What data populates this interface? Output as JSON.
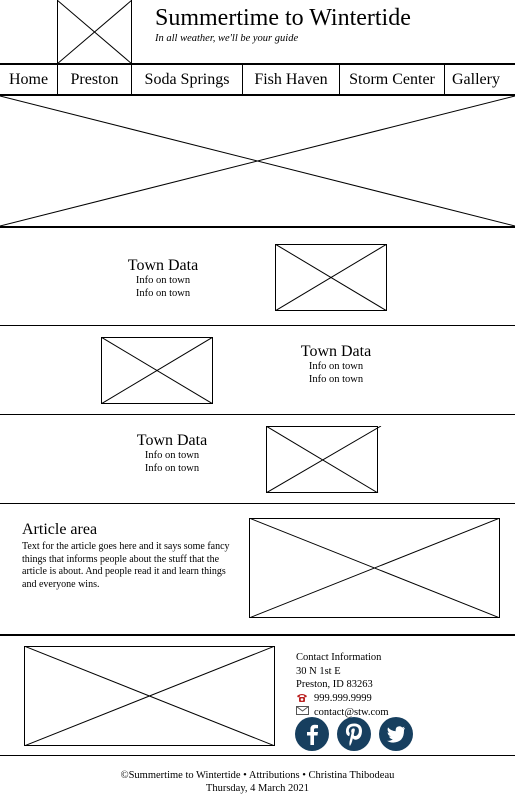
{
  "header": {
    "title": "Summertime to Wintertide",
    "motto": "In all weather, we'll be your guide"
  },
  "nav": {
    "items": [
      "Home",
      "Preston",
      "Soda Springs",
      "Fish Haven",
      "Storm Center",
      "Gallery"
    ]
  },
  "towns": [
    {
      "heading": "Town Data",
      "line1": "Info on town",
      "line2": "Info on town"
    },
    {
      "heading": "Town Data",
      "line1": "Info on town",
      "line2": "Info on town"
    },
    {
      "heading": "Town Data",
      "line1": "Info on town",
      "line2": "Info on town"
    }
  ],
  "article": {
    "heading": "Article area",
    "body": "Text for the article goes here and it says some fancy things that informs people about the stuff that the article is about. And people read it and learn things and everyone wins."
  },
  "contact": {
    "heading": "Contact Information",
    "street": "30 N 1st E",
    "city": "Preston, ID 83263",
    "phone": "999.999.9999",
    "email": "contact@stw.com",
    "phone_icon": "phone-icon",
    "email_icon": "envelope-icon"
  },
  "social": {
    "color": "#173f5f",
    "icons": [
      "facebook-icon",
      "pinterest-icon",
      "twitter-icon"
    ]
  },
  "footer": {
    "line1": "©Summertime to Wintertide • Attributions • Christina Thibodeau",
    "line2": "Thursday, 4 March 2021"
  }
}
